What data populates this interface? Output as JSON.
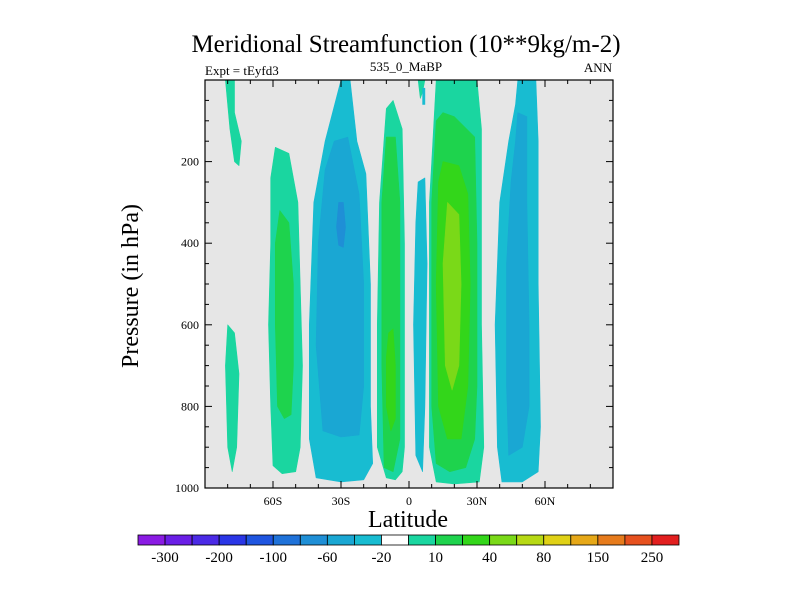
{
  "chart_data": {
    "type": "contour",
    "title": "Meridional Streamfunction (10**9kg/m-2)",
    "subtitle_left": "Expt = tEyfd3",
    "subtitle_center": "535_0_MaBP",
    "subtitle_right": "ANN",
    "xlabel": "Latitude",
    "ylabel": "Pressure (in hPa)",
    "xlim": [
      -90,
      90
    ],
    "ylim": [
      1000,
      0
    ],
    "x_ticks": [
      {
        "value": -60,
        "label": "60S"
      },
      {
        "value": -30,
        "label": "30S"
      },
      {
        "value": 0,
        "label": "0"
      },
      {
        "value": 30,
        "label": "30N"
      },
      {
        "value": 60,
        "label": "60N"
      }
    ],
    "y_ticks": [
      {
        "value": 200,
        "label": "200"
      },
      {
        "value": 400,
        "label": "400"
      },
      {
        "value": 600,
        "label": "600"
      },
      {
        "value": 800,
        "label": "800"
      },
      {
        "value": 1000,
        "label": "1000"
      }
    ],
    "missing_color": "#e6e6e6",
    "colorbar": {
      "colors": [
        "#8a1be3",
        "#6a1ee6",
        "#4b2ae6",
        "#2a36e6",
        "#1f55e0",
        "#1f72d9",
        "#1f8fd6",
        "#1aa7d3",
        "#18bcd1",
        "#ffffff",
        "#1ad6a0",
        "#1ed34d",
        "#33d61a",
        "#7ad918",
        "#b7d915",
        "#e0d116",
        "#e6a818",
        "#e67b1c",
        "#e6511e",
        "#e21f1f"
      ],
      "labels": [
        {
          "text": "-300",
          "boundary": 1
        },
        {
          "text": "-200",
          "boundary": 3
        },
        {
          "text": "-100",
          "boundary": 5
        },
        {
          "text": "-60",
          "boundary": 7
        },
        {
          "text": "-20",
          "boundary": 9
        },
        {
          "text": "10",
          "boundary": 11
        },
        {
          "text": "40",
          "boundary": 13
        },
        {
          "text": "80",
          "boundary": 15
        },
        {
          "text": "150",
          "boundary": 17
        },
        {
          "text": "250",
          "boundary": 19
        }
      ]
    },
    "contour_regions": [
      {
        "name": "contour-sh-polar-green",
        "level_min": 10,
        "level_max": 20,
        "color": "#1ad6a0",
        "points": [
          [
            -78,
            960
          ],
          [
            -76,
            900
          ],
          [
            -75,
            720
          ],
          [
            -77,
            620
          ],
          [
            -80,
            600
          ],
          [
            -81,
            700
          ],
          [
            -80,
            900
          ]
        ]
      },
      {
        "name": "contour-sh-top-green",
        "level_min": 10,
        "level_max": 20,
        "color": "#1ad6a0",
        "points": [
          [
            -81,
            0
          ],
          [
            -77,
            0
          ],
          [
            -77,
            80
          ],
          [
            -74,
            150
          ],
          [
            -75,
            210
          ],
          [
            -77,
            200
          ],
          [
            -79,
            120
          ]
        ]
      },
      {
        "name": "contour-sh-ferrel-cell",
        "level_min": 10,
        "level_max": 20,
        "color": "#1ad6a0",
        "points": [
          [
            -59,
            165
          ],
          [
            -53,
            180
          ],
          [
            -49,
            300
          ],
          [
            -48,
            500
          ],
          [
            -47,
            700
          ],
          [
            -48,
            900
          ],
          [
            -50,
            960
          ],
          [
            -56,
            965
          ],
          [
            -60,
            945
          ],
          [
            -61,
            800
          ],
          [
            -62,
            600
          ],
          [
            -61,
            400
          ],
          [
            -61,
            240
          ]
        ]
      },
      {
        "name": "contour-sh-ferrel-core",
        "level_min": 20,
        "level_max": 40,
        "color": "#1ed34d",
        "points": [
          [
            -57,
            320
          ],
          [
            -53,
            350
          ],
          [
            -51,
            500
          ],
          [
            -51,
            700
          ],
          [
            -52,
            820
          ],
          [
            -55,
            830
          ],
          [
            -58,
            800
          ],
          [
            -59,
            600
          ],
          [
            -59,
            400
          ]
        ]
      },
      {
        "name": "contour-sh-hadley-cell",
        "level_min": -20,
        "level_max": -10,
        "color": "#18bcd1",
        "points": [
          [
            -30,
            0
          ],
          [
            -26,
            0
          ],
          [
            -23,
            150
          ],
          [
            -19,
            230
          ],
          [
            -17,
            500
          ],
          [
            -17,
            800
          ],
          [
            -16,
            940
          ],
          [
            -20,
            980
          ],
          [
            -30,
            985
          ],
          [
            -41,
            975
          ],
          [
            -44,
            880
          ],
          [
            -44,
            600
          ],
          [
            -42,
            300
          ],
          [
            -37,
            150
          ]
        ]
      },
      {
        "name": "contour-sh-hadley-core",
        "level_min": -40,
        "level_max": -20,
        "color": "#1aa7d3",
        "points": [
          [
            -33,
            150
          ],
          [
            -27,
            140
          ],
          [
            -22,
            280
          ],
          [
            -20,
            500
          ],
          [
            -20,
            750
          ],
          [
            -22,
            870
          ],
          [
            -30,
            875
          ],
          [
            -38,
            860
          ],
          [
            -41,
            650
          ],
          [
            -40,
            400
          ],
          [
            -37,
            220
          ]
        ]
      },
      {
        "name": "contour-sh-hadley-max",
        "level_min": -60,
        "level_max": -40,
        "color": "#1f8fd6",
        "points": [
          [
            -31,
            300
          ],
          [
            -29,
            300
          ],
          [
            -28,
            360
          ],
          [
            -29,
            410
          ],
          [
            -31,
            405
          ],
          [
            -32,
            360
          ]
        ]
      },
      {
        "name": "contour-eq-green",
        "level_min": 10,
        "level_max": 20,
        "color": "#1ad6a0",
        "points": [
          [
            -10,
            70
          ],
          [
            -7,
            50
          ],
          [
            -3,
            120
          ],
          [
            -2,
            400
          ],
          [
            -2,
            700
          ],
          [
            -2,
            900
          ],
          [
            -3,
            960
          ],
          [
            -6,
            980
          ],
          [
            -10,
            975
          ],
          [
            -14,
            900
          ],
          [
            -14,
            600
          ],
          [
            -13,
            300
          ]
        ]
      },
      {
        "name": "contour-eq-core",
        "level_min": 20,
        "level_max": 40,
        "color": "#1ed34d",
        "points": [
          [
            -10,
            140
          ],
          [
            -6,
            140
          ],
          [
            -4,
            300
          ],
          [
            -4,
            600
          ],
          [
            -4,
            880
          ],
          [
            -7,
            960
          ],
          [
            -11,
            950
          ],
          [
            -12,
            700
          ],
          [
            -12,
            300
          ]
        ]
      },
      {
        "name": "contour-eq-max",
        "level_min": 40,
        "level_max": 60,
        "color": "#33d61a",
        "points": [
          [
            -9,
            620
          ],
          [
            -7,
            610
          ],
          [
            -6,
            700
          ],
          [
            -6,
            830
          ],
          [
            -8,
            860
          ],
          [
            -10,
            800
          ],
          [
            -10,
            680
          ]
        ]
      },
      {
        "name": "contour-eq-blue-strip",
        "level_min": -20,
        "level_max": -10,
        "color": "#18bcd1",
        "points": [
          [
            4,
            250
          ],
          [
            7,
            240
          ],
          [
            8,
            450
          ],
          [
            7,
            800
          ],
          [
            6,
            960
          ],
          [
            3,
            920
          ],
          [
            2,
            600
          ],
          [
            3,
            350
          ]
        ]
      },
      {
        "name": "contour-eq-top-green",
        "level_min": 10,
        "level_max": 20,
        "color": "#1ad6a0",
        "points": [
          [
            4,
            0
          ],
          [
            7,
            0
          ],
          [
            6,
            30
          ],
          [
            5,
            45
          ]
        ]
      },
      {
        "name": "contour-eq-top-blue",
        "level_min": -20,
        "level_max": -10,
        "color": "#18bcd1",
        "points": [
          [
            6,
            20
          ],
          [
            7,
            20
          ],
          [
            7,
            60
          ],
          [
            6,
            60
          ]
        ]
      },
      {
        "name": "contour-nh-hadley-cell",
        "level_min": 10,
        "level_max": 20,
        "color": "#1ad6a0",
        "points": [
          [
            12,
            0
          ],
          [
            30,
            0
          ],
          [
            32,
            120
          ],
          [
            32,
            300
          ],
          [
            32,
            600
          ],
          [
            33,
            900
          ],
          [
            31,
            985
          ],
          [
            20,
            990
          ],
          [
            12,
            985
          ],
          [
            9,
            900
          ],
          [
            9,
            300
          ],
          [
            10,
            200
          ]
        ]
      },
      {
        "name": "contour-nh-hadley-inner",
        "level_min": 20,
        "level_max": 40,
        "color": "#1ed34d",
        "points": [
          [
            12,
            100
          ],
          [
            15,
            80
          ],
          [
            20,
            90
          ],
          [
            29,
            140
          ],
          [
            30,
            400
          ],
          [
            30,
            750
          ],
          [
            29,
            880
          ],
          [
            25,
            950
          ],
          [
            18,
            960
          ],
          [
            12,
            940
          ],
          [
            10,
            800
          ],
          [
            10,
            300
          ]
        ]
      },
      {
        "name": "contour-nh-hadley-core",
        "level_min": 40,
        "level_max": 60,
        "color": "#33d61a",
        "points": [
          [
            15,
            200
          ],
          [
            22,
            210
          ],
          [
            26,
            280
          ],
          [
            27,
            500
          ],
          [
            26,
            750
          ],
          [
            23,
            880
          ],
          [
            17,
            880
          ],
          [
            13,
            800
          ],
          [
            12,
            500
          ],
          [
            13,
            250
          ]
        ]
      },
      {
        "name": "contour-nh-hadley-max",
        "level_min": 60,
        "level_max": 80,
        "color": "#7ad918",
        "points": [
          [
            17,
            300
          ],
          [
            22,
            330
          ],
          [
            23,
            500
          ],
          [
            22,
            700
          ],
          [
            19,
            760
          ],
          [
            16,
            700
          ],
          [
            15,
            450
          ]
        ]
      },
      {
        "name": "contour-nh-ferrel-cell",
        "level_min": -20,
        "level_max": -10,
        "color": "#18bcd1",
        "points": [
          [
            48,
            0
          ],
          [
            56,
            0
          ],
          [
            57,
            150
          ],
          [
            57,
            500
          ],
          [
            58,
            850
          ],
          [
            57,
            960
          ],
          [
            50,
            985
          ],
          [
            41,
            985
          ],
          [
            39,
            900
          ],
          [
            38,
            600
          ],
          [
            40,
            300
          ],
          [
            44,
            150
          ],
          [
            47,
            60
          ]
        ]
      },
      {
        "name": "contour-nh-ferrel-core",
        "level_min": -40,
        "level_max": -20,
        "color": "#1aa7d3",
        "points": [
          [
            48,
            80
          ],
          [
            52,
            90
          ],
          [
            52,
            300
          ],
          [
            53,
            600
          ],
          [
            53,
            800
          ],
          [
            50,
            900
          ],
          [
            44,
            920
          ],
          [
            43,
            750
          ],
          [
            43,
            450
          ],
          [
            45,
            250
          ],
          [
            47,
            150
          ]
        ]
      }
    ]
  }
}
